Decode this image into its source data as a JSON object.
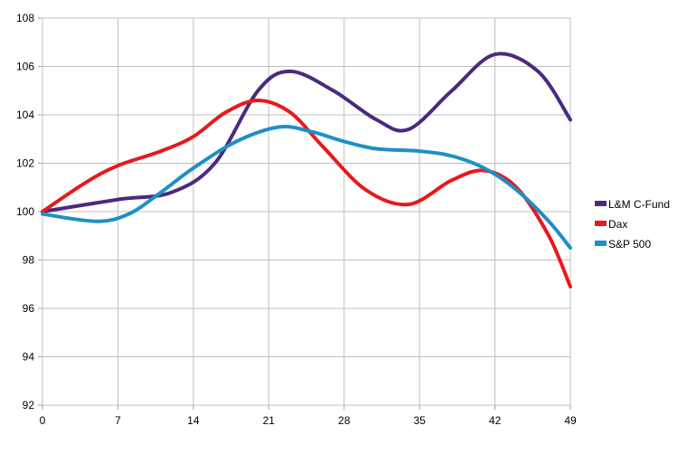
{
  "chart_data": {
    "type": "line",
    "title": "",
    "xlabel": "",
    "ylabel": "",
    "x": [
      0,
      7,
      14,
      21,
      28,
      35,
      42,
      49
    ],
    "xlim": [
      0,
      49
    ],
    "ylim": [
      92,
      108
    ],
    "x_ticks": [
      "0",
      "7",
      "14",
      "21",
      "28",
      "35",
      "42",
      "49"
    ],
    "y_ticks": [
      "92",
      "94",
      "96",
      "98",
      "100",
      "102",
      "104",
      "106",
      "108"
    ],
    "grid": "on",
    "legend_position": "right",
    "series": [
      {
        "name": "L&M C-Fund",
        "color": "#4b2a7e",
        "x": [
          0,
          7,
          12,
          16,
          20,
          23,
          27,
          31,
          34,
          38,
          42,
          46,
          49
        ],
        "values": [
          100.0,
          100.5,
          100.8,
          102.0,
          105.0,
          105.8,
          105.0,
          103.8,
          103.4,
          105.0,
          106.5,
          105.8,
          103.8
        ]
      },
      {
        "name": "Dax",
        "color": "#e8191b",
        "x": [
          0,
          4,
          7,
          11,
          14,
          17,
          20,
          23,
          26,
          30,
          34,
          38,
          41,
          44,
          47,
          49
        ],
        "values": [
          100.0,
          101.2,
          101.9,
          102.5,
          103.1,
          104.1,
          104.6,
          104.1,
          102.7,
          100.9,
          100.3,
          101.3,
          101.7,
          101.0,
          99.0,
          96.9
        ]
      },
      {
        "name": "S&P 500",
        "color": "#1e8fc7",
        "x": [
          0,
          5,
          8,
          11,
          14,
          18,
          22,
          25,
          28,
          31,
          35,
          38,
          41,
          44,
          47,
          49
        ],
        "values": [
          99.9,
          99.6,
          99.9,
          100.8,
          101.8,
          102.9,
          103.5,
          103.3,
          102.9,
          102.6,
          102.5,
          102.3,
          101.8,
          100.9,
          99.6,
          98.5
        ]
      }
    ]
  }
}
